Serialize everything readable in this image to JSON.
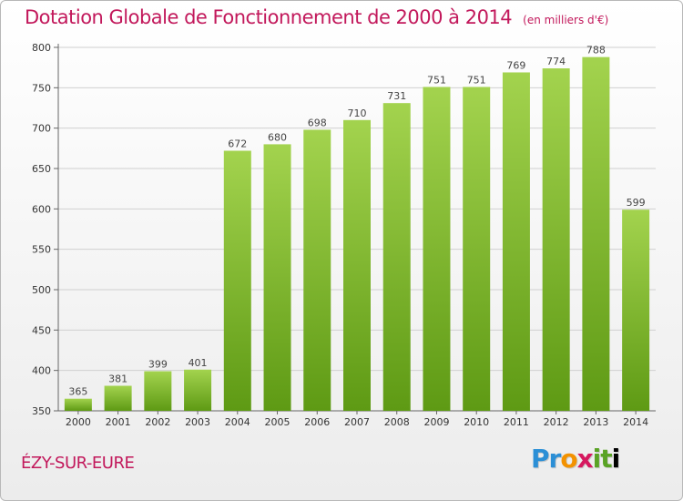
{
  "header": {
    "title": "Dotation Globale de Fonctionnement de 2000 à 2014",
    "unit": "(en milliers d'€)"
  },
  "footer": {
    "place": "ÉZY-SUR-EURE",
    "logo_letters": [
      "P",
      "r",
      "o",
      "x",
      "i",
      "t",
      "i"
    ]
  },
  "colors": {
    "title": "#c2185b",
    "bar_top": "#a3d34e",
    "bar_bottom": "#5e9a14",
    "grid": "#d0d0d0"
  },
  "chart_data": {
    "type": "bar",
    "title": "Dotation Globale de Fonctionnement de 2000 à 2014",
    "subtitle": "(en milliers d'€)",
    "xlabel": "",
    "ylabel": "",
    "categories": [
      "2000",
      "2001",
      "2002",
      "2003",
      "2004",
      "2005",
      "2006",
      "2007",
      "2008",
      "2009",
      "2010",
      "2011",
      "2012",
      "2013",
      "2014"
    ],
    "values": [
      365,
      381,
      399,
      401,
      672,
      680,
      698,
      710,
      731,
      751,
      751,
      769,
      774,
      788,
      599
    ],
    "ylim": [
      350,
      800
    ],
    "yticks": [
      350,
      400,
      450,
      500,
      550,
      600,
      650,
      700,
      750,
      800
    ],
    "grid": true,
    "legend": "none"
  }
}
